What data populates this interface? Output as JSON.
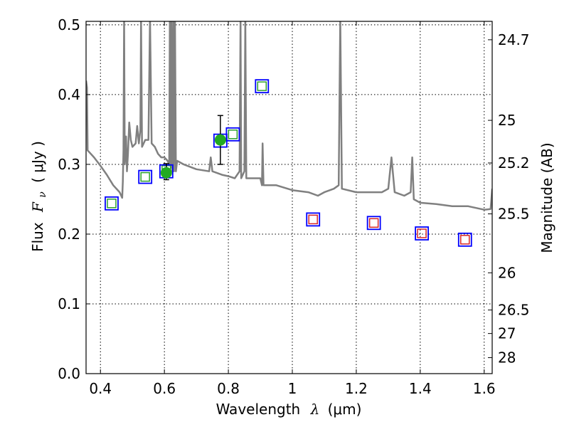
{
  "chart_data": {
    "type": "scatter",
    "xlabel_main": "Wavelength",
    "xlabel_symbol": "λ",
    "xlabel_unit": "(μm)",
    "ylabel_main": "Flux",
    "ylabel_symbol": "F",
    "ylabel_sub": "ν",
    "ylabel_unit": "( μJy )",
    "y2label": "Magnitude (AB)",
    "xlim": [
      0.355,
      1.625
    ],
    "ylim": [
      0.0,
      0.505
    ],
    "grid": true,
    "x_ticks": [
      {
        "value": 0.4,
        "label": "0.4"
      },
      {
        "value": 0.6,
        "label": "0.6"
      },
      {
        "value": 0.8,
        "label": "0.8"
      },
      {
        "value": 1.0,
        "label": "1"
      },
      {
        "value": 1.2,
        "label": "1.2"
      },
      {
        "value": 1.4,
        "label": "1.4"
      },
      {
        "value": 1.6,
        "label": "1.6"
      }
    ],
    "y_ticks": [
      {
        "value": 0.0,
        "label": "0.0"
      },
      {
        "value": 0.1,
        "label": "0.1"
      },
      {
        "value": 0.2,
        "label": "0.2"
      },
      {
        "value": 0.3,
        "label": "0.3"
      },
      {
        "value": 0.4,
        "label": "0.4"
      },
      {
        "value": 0.5,
        "label": "0.5"
      }
    ],
    "y2_ticks": [
      {
        "flux": 0.4786,
        "label": "24.7"
      },
      {
        "flux": 0.3631,
        "label": "25"
      },
      {
        "flux": 0.302,
        "label": "25.2"
      },
      {
        "flux": 0.229,
        "label": "25.5"
      },
      {
        "flux": 0.1445,
        "label": "26"
      },
      {
        "flux": 0.0912,
        "label": "26.5"
      },
      {
        "flux": 0.0575,
        "label": "27"
      },
      {
        "flux": 0.0229,
        "label": "28"
      }
    ],
    "series": [
      {
        "kind": "model-spectrum",
        "color": "#808080",
        "points": [
          [
            0.355,
            0.42
          ],
          [
            0.358,
            0.41
          ],
          [
            0.36,
            0.32
          ],
          [
            0.37,
            0.315
          ],
          [
            0.38,
            0.31
          ],
          [
            0.4,
            0.298
          ],
          [
            0.42,
            0.285
          ],
          [
            0.44,
            0.27
          ],
          [
            0.46,
            0.26
          ],
          [
            0.468,
            0.252
          ],
          [
            0.47,
            0.275
          ],
          [
            0.472,
            0.32
          ],
          [
            0.474,
            0.51
          ],
          [
            0.476,
            0.3
          ],
          [
            0.48,
            0.34
          ],
          [
            0.483,
            0.29
          ],
          [
            0.486,
            0.315
          ],
          [
            0.49,
            0.36
          ],
          [
            0.495,
            0.335
          ],
          [
            0.5,
            0.325
          ],
          [
            0.51,
            0.33
          ],
          [
            0.515,
            0.355
          ],
          [
            0.52,
            0.33
          ],
          [
            0.525,
            0.35
          ],
          [
            0.527,
            0.51
          ],
          [
            0.53,
            0.325
          ],
          [
            0.54,
            0.335
          ],
          [
            0.55,
            0.335
          ],
          [
            0.555,
            0.51
          ],
          [
            0.56,
            0.33
          ],
          [
            0.57,
            0.325
          ],
          [
            0.58,
            0.315
          ],
          [
            0.59,
            0.31
          ],
          [
            0.6,
            0.31
          ],
          [
            0.61,
            0.305
          ],
          [
            0.615,
            0.3
          ],
          [
            0.617,
            0.51
          ],
          [
            0.62,
            0.295
          ],
          [
            0.622,
            0.51
          ],
          [
            0.625,
            0.29
          ],
          [
            0.628,
            0.51
          ],
          [
            0.63,
            0.29
          ],
          [
            0.633,
            0.51
          ],
          [
            0.636,
            0.29
          ],
          [
            0.64,
            0.305
          ],
          [
            0.66,
            0.3
          ],
          [
            0.7,
            0.293
          ],
          [
            0.74,
            0.29
          ],
          [
            0.745,
            0.31
          ],
          [
            0.75,
            0.29
          ],
          [
            0.78,
            0.285
          ],
          [
            0.8,
            0.283
          ],
          [
            0.82,
            0.28
          ],
          [
            0.835,
            0.29
          ],
          [
            0.838,
            0.51
          ],
          [
            0.84,
            0.28
          ],
          [
            0.85,
            0.29
          ],
          [
            0.853,
            0.51
          ],
          [
            0.856,
            0.28
          ],
          [
            0.86,
            0.28
          ],
          [
            0.9,
            0.28
          ],
          [
            0.905,
            0.27
          ],
          [
            0.907,
            0.33
          ],
          [
            0.91,
            0.27
          ],
          [
            0.95,
            0.27
          ],
          [
            1.0,
            0.263
          ],
          [
            1.05,
            0.26
          ],
          [
            1.08,
            0.255
          ],
          [
            1.1,
            0.26
          ],
          [
            1.13,
            0.265
          ],
          [
            1.145,
            0.27
          ],
          [
            1.15,
            0.51
          ],
          [
            1.155,
            0.265
          ],
          [
            1.2,
            0.26
          ],
          [
            1.25,
            0.26
          ],
          [
            1.28,
            0.26
          ],
          [
            1.3,
            0.265
          ],
          [
            1.31,
            0.31
          ],
          [
            1.32,
            0.26
          ],
          [
            1.35,
            0.255
          ],
          [
            1.37,
            0.26
          ],
          [
            1.375,
            0.31
          ],
          [
            1.38,
            0.25
          ],
          [
            1.4,
            0.245
          ],
          [
            1.45,
            0.243
          ],
          [
            1.5,
            0.24
          ],
          [
            1.55,
            0.24
          ],
          [
            1.6,
            0.235
          ],
          [
            1.62,
            0.236
          ],
          [
            1.625,
            0.265
          ]
        ]
      },
      {
        "kind": "model-photometry",
        "marker": "open-square",
        "color_green": "#2ca02c",
        "color_red": "#d62728",
        "points": [
          {
            "x": 0.435,
            "y": 0.244,
            "color": "green"
          },
          {
            "x": 0.54,
            "y": 0.282,
            "color": "green"
          },
          {
            "x": 0.606,
            "y": 0.292,
            "color": "green"
          },
          {
            "x": 0.814,
            "y": 0.343,
            "color": "green"
          },
          {
            "x": 0.905,
            "y": 0.412,
            "color": "green"
          },
          {
            "x": 1.065,
            "y": 0.221,
            "color": "red"
          },
          {
            "x": 1.255,
            "y": 0.216,
            "color": "red"
          },
          {
            "x": 1.405,
            "y": 0.201,
            "color": "red"
          },
          {
            "x": 1.54,
            "y": 0.192,
            "color": "red"
          }
        ]
      },
      {
        "kind": "observed-photometry-box",
        "marker": "open-square-large",
        "color": "#0000ff",
        "points": [
          {
            "x": 0.435,
            "y": 0.244
          },
          {
            "x": 0.54,
            "y": 0.282
          },
          {
            "x": 0.606,
            "y": 0.29
          },
          {
            "x": 0.775,
            "y": 0.334
          },
          {
            "x": 0.814,
            "y": 0.343
          },
          {
            "x": 0.905,
            "y": 0.412
          },
          {
            "x": 1.065,
            "y": 0.221
          },
          {
            "x": 1.255,
            "y": 0.216
          },
          {
            "x": 1.405,
            "y": 0.201
          },
          {
            "x": 1.54,
            "y": 0.192
          }
        ]
      },
      {
        "kind": "detections",
        "marker": "filled-circle",
        "color": "#22aa22",
        "points": [
          {
            "x": 0.606,
            "y": 0.288,
            "yerr_low": 0.278,
            "yerr_high": 0.301
          },
          {
            "x": 0.775,
            "y": 0.335,
            "yerr_low": 0.3,
            "yerr_high": 0.37
          }
        ]
      }
    ]
  }
}
